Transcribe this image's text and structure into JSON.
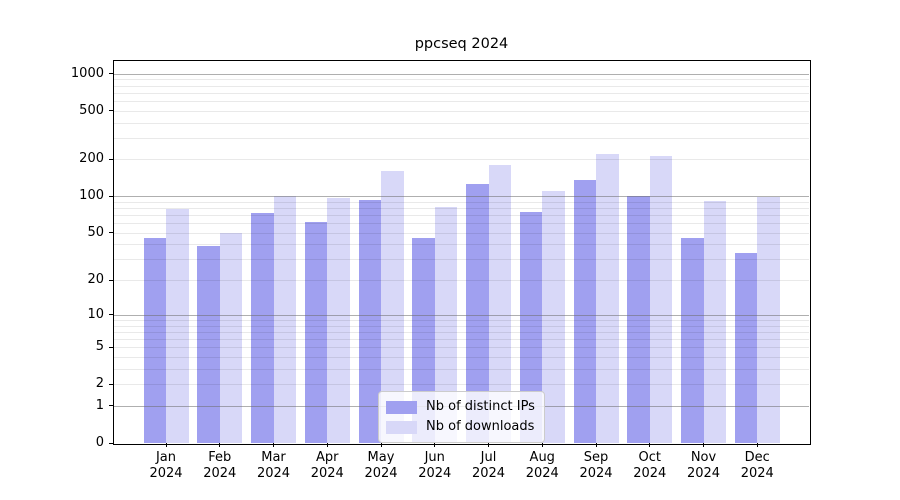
{
  "chart_data": {
    "type": "bar",
    "title": "ppcseq 2024",
    "categories": [
      "Jan",
      "Feb",
      "Mar",
      "Apr",
      "May",
      "Jun",
      "Jul",
      "Aug",
      "Sep",
      "Oct",
      "Nov",
      "Dec"
    ],
    "category_year": "2024",
    "series": [
      {
        "name": "Nb of distinct IPs",
        "color": "#a0a0f0",
        "values": [
          45,
          39,
          73,
          61,
          93,
          45,
          126,
          74,
          135,
          100,
          45,
          34
        ]
      },
      {
        "name": "Nb of downloads",
        "color": "#d8d8f8",
        "values": [
          79,
          50,
          101,
          97,
          160,
          81,
          181,
          111,
          223,
          212,
          91,
          98
        ]
      }
    ],
    "yticks": [
      0,
      1,
      2,
      5,
      10,
      20,
      50,
      100,
      200,
      500,
      1000
    ],
    "scale": "log10(1+v)",
    "ylim": [
      0,
      1300
    ],
    "grid": "on",
    "legend_position": "lower center",
    "xlabel": "",
    "ylabel": ""
  },
  "colors": {
    "background": "#ffffff",
    "axis": "#000000",
    "major_grid": "rgba(110,110,110,0.55)",
    "minor_grid": "rgba(0,0,0,0.085)",
    "legend_border": "#cccccc",
    "legend_bg": "rgba(255,255,255,0.8)",
    "text": "#000000"
  }
}
